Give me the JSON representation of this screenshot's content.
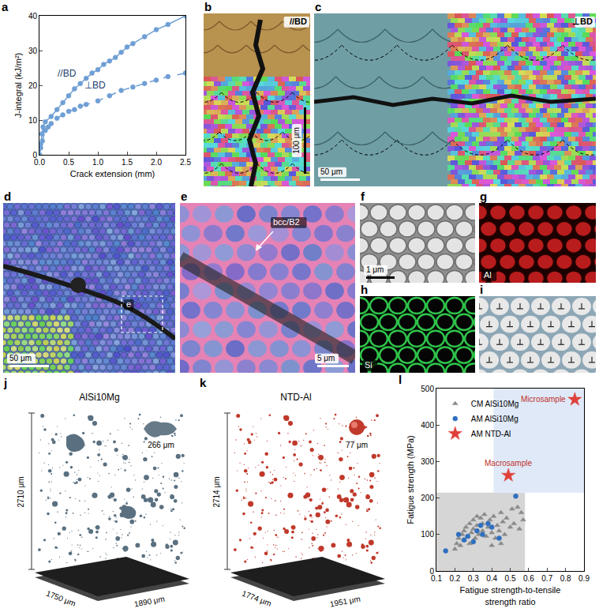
{
  "chart_data": [
    {
      "panel": "a",
      "type": "line",
      "xlabel": "Crack extension (mm)",
      "ylabel": "J-integral (kJ/m²)",
      "xlim": [
        0,
        2.5
      ],
      "xticks": [
        {
          "value": 0,
          "label": "0.0"
        },
        {
          "value": 0.5,
          "label": "0.5"
        },
        {
          "value": 1,
          "label": "1.0"
        },
        {
          "value": 1.5,
          "label": "1.5"
        },
        {
          "value": 2,
          "label": "2.0"
        },
        {
          "value": 2.5,
          "label": "2.5"
        }
      ],
      "ylim": [
        0,
        40
      ],
      "yticks": [
        0,
        10,
        20,
        30,
        40
      ],
      "grid": false,
      "series": [
        {
          "name": "//BD",
          "color": "#6f9fd4",
          "marker": "circle",
          "line_style": "solid",
          "x": [
            0,
            0.02,
            0.04,
            0.06,
            0.1,
            0.2,
            0.3,
            0.4,
            0.5,
            0.6,
            0.7,
            0.8,
            0.9,
            1.0,
            1.1,
            1.2,
            1.3,
            1.4,
            1.5,
            1.6,
            1.8,
            2.0,
            2.2,
            2.5
          ],
          "values": [
            0,
            3,
            6,
            8,
            9.5,
            11,
            13,
            15,
            17,
            19,
            20.5,
            22,
            23.5,
            24.5,
            26,
            27,
            28,
            29.5,
            31,
            32,
            34,
            36,
            37.5,
            40
          ]
        },
        {
          "name": "⊥BD",
          "color": "#6f9fd4",
          "marker": "circle",
          "line_style": "dashed",
          "x": [
            0,
            0.02,
            0.05,
            0.1,
            0.15,
            0.2,
            0.3,
            0.4,
            0.5,
            0.6,
            0.7,
            0.8,
            1.0,
            1.2,
            1.4,
            1.6,
            1.8,
            2.0,
            2.2,
            2.5
          ],
          "values": [
            0,
            2,
            4,
            7,
            8,
            9,
            10.5,
            11.5,
            12.5,
            13,
            14,
            14.5,
            15.5,
            17,
            18.5,
            19.5,
            20.5,
            21.5,
            22.5,
            23.5
          ]
        }
      ]
    },
    {
      "panel": "l",
      "type": "scatter",
      "xlabel": "Fatigue strength-to-tensile strength ratio",
      "ylabel": "Fatigue strength (MPa)",
      "xlim": [
        0.1,
        0.9
      ],
      "xticks": [
        0.1,
        0.2,
        0.3,
        0.4,
        0.5,
        0.6,
        0.7,
        0.8,
        0.9
      ],
      "ylim": [
        0,
        500
      ],
      "yticks": [
        0,
        100,
        200,
        300,
        400,
        500
      ],
      "grid": false,
      "legend": "top-left",
      "regions": [
        {
          "x": [
            0.1,
            0.58
          ],
          "y": [
            0,
            215
          ],
          "color": "#d6d6d6"
        },
        {
          "x": [
            0.41,
            0.9
          ],
          "y": [
            215,
            500
          ],
          "color": "#dfe9f8"
        }
      ],
      "series": [
        {
          "name": "CM AlSi10Mg",
          "color": "#8a8a8a",
          "marker": "triangle-up",
          "x": [
            0.2,
            0.21,
            0.22,
            0.23,
            0.24,
            0.25,
            0.25,
            0.26,
            0.27,
            0.28,
            0.28,
            0.29,
            0.3,
            0.3,
            0.31,
            0.32,
            0.32,
            0.33,
            0.34,
            0.35,
            0.35,
            0.36,
            0.37,
            0.38,
            0.39,
            0.4,
            0.41,
            0.42,
            0.43,
            0.44,
            0.45,
            0.46,
            0.47,
            0.48,
            0.5,
            0.51,
            0.52,
            0.54,
            0.55,
            0.56,
            0.57,
            0.4,
            0.45
          ],
          "values": [
            60,
            75,
            90,
            70,
            100,
            110,
            85,
            120,
            95,
            130,
            75,
            105,
            140,
            115,
            90,
            150,
            125,
            100,
            145,
            110,
            130,
            155,
            95,
            120,
            140,
            105,
            150,
            90,
            125,
            110,
            160,
            135,
            100,
            145,
            120,
            170,
            130,
            175,
            115,
            160,
            140,
            70,
            75
          ]
        },
        {
          "name": "AM AlSi10Mg",
          "color": "#2e6fbf",
          "marker": "circle",
          "x": [
            0.15,
            0.22,
            0.25,
            0.27,
            0.3,
            0.32,
            0.34,
            0.35,
            0.38,
            0.4,
            0.44,
            0.53
          ],
          "values": [
            55,
            100,
            85,
            95,
            80,
            110,
            125,
            100,
            130,
            120,
            90,
            205
          ]
        },
        {
          "name": "AM NTD-Al",
          "color": "#e0403a",
          "marker": "star",
          "x": [
            0.49,
            0.85
          ],
          "values": [
            262,
            470
          ],
          "labels": [
            "Macrosample",
            "Microsample"
          ]
        }
      ]
    }
  ],
  "micrographs": {
    "b": {
      "label": "//BD",
      "scale_bar": "100 μm"
    },
    "c": {
      "label": "⊥BD",
      "scale_bar": "50 μm"
    },
    "d": {
      "scale_bar": "50 μm",
      "inset": "e"
    },
    "e": {
      "arrow_label": "bcc/B2",
      "scale_bar": "5 μm"
    },
    "f": {
      "scale_bar": "1 μm"
    },
    "g": {
      "label": "Al"
    },
    "h": {
      "label": "Si"
    },
    "i": {},
    "j": {
      "title": "AlSi10Mg",
      "height": "2710 μm",
      "depth": "1750 μm",
      "width": "1890 μm",
      "inset": "266 μm"
    },
    "k": {
      "title": "NTD-Al",
      "height": "2714 μm",
      "depth": "1774 μm",
      "width": "1951 μm",
      "inset": "77 μm"
    }
  }
}
